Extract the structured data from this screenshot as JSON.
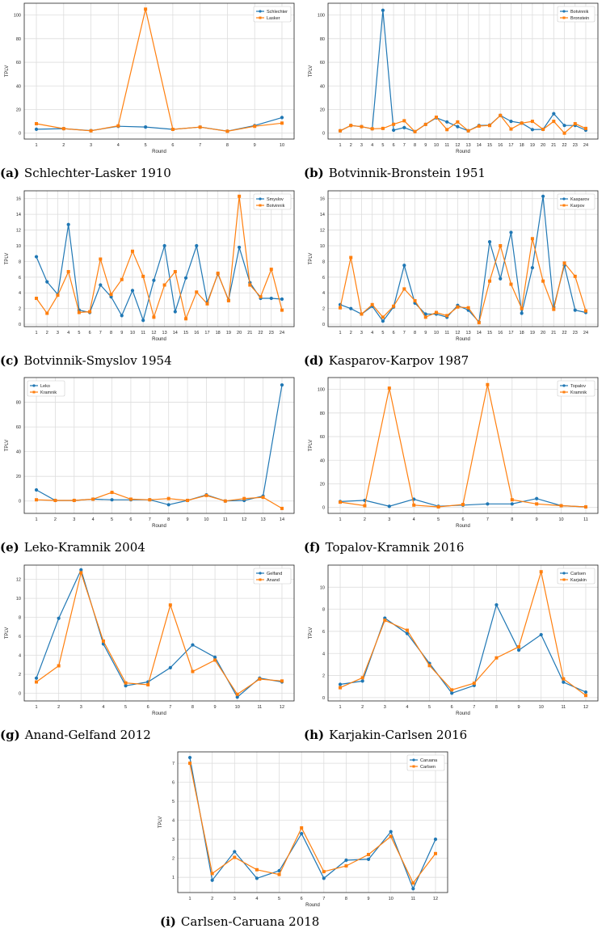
{
  "colors": {
    "blue": "#1f77b4",
    "orange": "#ff7f0e",
    "grid": "#dddddd",
    "frame": "#222222"
  },
  "chart_data": [
    {
      "id": "a",
      "type": "line",
      "caption_label": "(a)",
      "caption": "Schlechter-Lasker 1910",
      "xlabel": "Round",
      "ylabel": "TPLV",
      "legend": "top-right",
      "ylim": [
        -5,
        110
      ],
      "yticks": [
        0,
        20,
        40,
        60,
        80,
        100
      ],
      "categories": [
        "1",
        "2",
        "3",
        "4",
        "5",
        "6",
        "7",
        "8",
        "9",
        "10"
      ],
      "series": [
        {
          "name": "Schlechter",
          "color": "#1f77b4",
          "marker": "circle",
          "values": [
            3.3,
            3.8,
            2.1,
            5.8,
            5.2,
            3.2,
            5.1,
            1.7,
            6.4,
            13.2
          ]
        },
        {
          "name": "Lasker",
          "color": "#ff7f0e",
          "marker": "square",
          "values": [
            8.0,
            3.8,
            2.0,
            6.2,
            105.0,
            3.2,
            5.1,
            1.6,
            5.8,
            8.5
          ]
        }
      ]
    },
    {
      "id": "b",
      "type": "line",
      "caption_label": "(b)",
      "caption": "Botvinnik-Bronstein 1951",
      "xlabel": "Round",
      "ylabel": "TPLV",
      "legend": "top-right",
      "ylim": [
        -5,
        110
      ],
      "yticks": [
        0,
        20,
        40,
        60,
        80,
        100
      ],
      "categories": [
        "1",
        "2",
        "3",
        "4",
        "5",
        "6",
        "7",
        "8",
        "9",
        "10",
        "11",
        "12",
        "13",
        "14",
        "15",
        "16",
        "17",
        "18",
        "19",
        "20",
        "21",
        "22",
        "23",
        "24"
      ],
      "series": [
        {
          "name": "Botvinnik",
          "color": "#1f77b4",
          "marker": "circle",
          "values": [
            2.0,
            6.5,
            5.5,
            3.7,
            104.0,
            2.5,
            4.7,
            1.3,
            7.4,
            13.0,
            9.5,
            5.5,
            2.0,
            6.5,
            6.8,
            15.0,
            10.0,
            8.5,
            3.0,
            3.2,
            16.5,
            6.5,
            6.5,
            2.5
          ]
        },
        {
          "name": "Bronstein",
          "color": "#ff7f0e",
          "marker": "square",
          "values": [
            2.0,
            6.5,
            5.5,
            3.7,
            4.0,
            7.5,
            10.5,
            1.3,
            7.4,
            13.5,
            3.0,
            9.5,
            2.0,
            6.0,
            6.5,
            15.0,
            3.5,
            8.5,
            10.0,
            3.2,
            10.0,
            0.0,
            8.0,
            4.0
          ]
        }
      ]
    },
    {
      "id": "c",
      "type": "line",
      "caption_label": "(c)",
      "caption": "Botvinnik-Smyslov 1954",
      "xlabel": "Round",
      "ylabel": "TPLV",
      "legend": "top-right",
      "ylim": [
        -0.3,
        17
      ],
      "yticks": [
        0,
        2,
        4,
        6,
        8,
        10,
        12,
        14,
        16
      ],
      "categories": [
        "1",
        "2",
        "3",
        "4",
        "5",
        "6",
        "7",
        "8",
        "9",
        "10",
        "11",
        "12",
        "13",
        "14",
        "15",
        "16",
        "17",
        "18",
        "19",
        "20",
        "21",
        "22",
        "23",
        "24"
      ],
      "series": [
        {
          "name": "Smyslov",
          "color": "#1f77b4",
          "marker": "circle",
          "values": [
            8.6,
            5.4,
            3.8,
            12.7,
            1.8,
            1.5,
            5.0,
            3.5,
            1.1,
            4.3,
            0.5,
            5.6,
            10.0,
            1.6,
            5.9,
            10.0,
            2.8,
            6.4,
            3.1,
            9.8,
            5.3,
            3.3,
            3.3,
            3.2
          ]
        },
        {
          "name": "Botvinnik",
          "color": "#ff7f0e",
          "marker": "square",
          "values": [
            3.3,
            1.4,
            3.7,
            6.7,
            1.5,
            1.6,
            8.3,
            3.8,
            5.7,
            9.3,
            6.1,
            0.9,
            5.0,
            6.7,
            0.7,
            4.1,
            2.6,
            6.5,
            3.0,
            16.3,
            5.0,
            3.5,
            7.0,
            1.8
          ]
        }
      ]
    },
    {
      "id": "d",
      "type": "line",
      "caption_label": "(d)",
      "caption": "Kasparov-Karpov 1987",
      "xlabel": "Round",
      "ylabel": "TPLV",
      "legend": "top-right",
      "ylim": [
        -0.3,
        17
      ],
      "yticks": [
        0,
        2,
        4,
        6,
        8,
        10,
        12,
        14,
        16
      ],
      "categories": [
        "1",
        "2",
        "3",
        "4",
        "5",
        "6",
        "7",
        "8",
        "9",
        "10",
        "11",
        "12",
        "13",
        "14",
        "15",
        "16",
        "17",
        "18",
        "19",
        "20",
        "21",
        "22",
        "23",
        "24"
      ],
      "series": [
        {
          "name": "Kasparov",
          "color": "#1f77b4",
          "marker": "circle",
          "values": [
            2.5,
            2.0,
            1.3,
            2.3,
            0.4,
            2.2,
            7.5,
            2.7,
            1.3,
            1.3,
            0.9,
            2.4,
            1.8,
            0.3,
            10.5,
            5.8,
            11.7,
            1.4,
            7.2,
            16.3,
            2.2,
            7.5,
            1.8,
            1.5
          ]
        },
        {
          "name": "Karpov",
          "color": "#ff7f0e",
          "marker": "square",
          "values": [
            2.1,
            8.5,
            1.3,
            2.5,
            0.9,
            2.3,
            4.5,
            3.0,
            0.9,
            1.5,
            1.1,
            2.2,
            2.1,
            0.2,
            5.5,
            10.0,
            5.1,
            2.0,
            10.9,
            5.5,
            1.9,
            7.8,
            6.1,
            1.7
          ]
        }
      ]
    },
    {
      "id": "e",
      "type": "line",
      "caption_label": "(e)",
      "caption": "Leko-Kramnik 2004",
      "xlabel": "Round",
      "ylabel": "TPLV",
      "legend": "top-left",
      "ylim": [
        -10,
        100
      ],
      "yticks": [
        0,
        20,
        40,
        60,
        80
      ],
      "categories": [
        "1",
        "2",
        "3",
        "4",
        "5",
        "6",
        "7",
        "8",
        "9",
        "10",
        "11",
        "12",
        "13",
        "14"
      ],
      "series": [
        {
          "name": "Leko",
          "color": "#1f77b4",
          "marker": "circle",
          "values": [
            9.0,
            0.5,
            0.5,
            1.5,
            1.0,
            1.0,
            1.0,
            -3.0,
            0.5,
            5.0,
            0.0,
            0.5,
            4.0,
            94.0
          ]
        },
        {
          "name": "Kramnik",
          "color": "#ff7f0e",
          "marker": "square",
          "values": [
            1.0,
            0.5,
            0.5,
            1.5,
            7.0,
            1.5,
            1.0,
            2.0,
            0.5,
            4.5,
            0.0,
            2.0,
            3.0,
            -6.0
          ]
        }
      ]
    },
    {
      "id": "f",
      "type": "line",
      "caption_label": "(f)",
      "caption": "Topalov-Kramnik 2016",
      "xlabel": "Round",
      "ylabel": "TPLV",
      "legend": "top-right",
      "ylim": [
        -5,
        110
      ],
      "yticks": [
        0,
        20,
        40,
        60,
        80,
        100
      ],
      "categories": [
        "1",
        "2",
        "3",
        "4",
        "5",
        "6",
        "7",
        "8",
        "9",
        "10",
        "11"
      ],
      "series": [
        {
          "name": "Topalov",
          "color": "#1f77b4",
          "marker": "circle",
          "values": [
            5.0,
            6.0,
            1.0,
            7.0,
            1.0,
            2.0,
            3.0,
            3.0,
            7.5,
            1.5,
            0.5
          ]
        },
        {
          "name": "Kramnik",
          "color": "#ff7f0e",
          "marker": "square",
          "values": [
            4.5,
            1.5,
            101.0,
            2.0,
            0.5,
            2.5,
            104.0,
            6.5,
            3.0,
            1.5,
            0.5
          ]
        }
      ]
    },
    {
      "id": "g",
      "type": "line",
      "caption_label": "(g)",
      "caption": "Anand-Gelfand 2012",
      "xlabel": "Round",
      "ylabel": "TPLV",
      "legend": "top-right",
      "ylim": [
        -0.8,
        13.5
      ],
      "yticks": [
        0,
        2,
        4,
        6,
        8,
        10,
        12
      ],
      "categories": [
        "1",
        "2",
        "3",
        "4",
        "5",
        "6",
        "7",
        "8",
        "9",
        "10",
        "11",
        "12"
      ],
      "series": [
        {
          "name": "Gelfand",
          "color": "#1f77b4",
          "marker": "circle",
          "values": [
            1.6,
            7.9,
            13.0,
            5.2,
            0.8,
            1.2,
            2.7,
            5.1,
            3.8,
            -0.4,
            1.6,
            1.2
          ]
        },
        {
          "name": "Anand",
          "color": "#ff7f0e",
          "marker": "square",
          "values": [
            1.2,
            2.9,
            12.7,
            5.5,
            1.1,
            0.9,
            9.3,
            2.3,
            3.5,
            -0.1,
            1.5,
            1.3
          ]
        }
      ]
    },
    {
      "id": "h",
      "type": "line",
      "caption_label": "(h)",
      "caption": "Karjakin-Carlsen 2016",
      "xlabel": "Round",
      "ylabel": "TPLV",
      "legend": "top-right",
      "ylim": [
        -0.3,
        12
      ],
      "yticks": [
        0,
        2,
        4,
        6,
        8,
        10
      ],
      "categories": [
        "1",
        "2",
        "3",
        "4",
        "5",
        "6",
        "7",
        "8",
        "9",
        "10",
        "11",
        "12"
      ],
      "series": [
        {
          "name": "Carlsen",
          "color": "#1f77b4",
          "marker": "circle",
          "values": [
            1.2,
            1.5,
            7.2,
            5.8,
            3.1,
            0.4,
            1.1,
            8.4,
            4.3,
            5.7,
            1.4,
            0.5
          ]
        },
        {
          "name": "Karjakin",
          "color": "#ff7f0e",
          "marker": "square",
          "values": [
            0.9,
            1.8,
            7.0,
            6.1,
            2.9,
            0.7,
            1.3,
            3.6,
            4.6,
            11.4,
            1.7,
            0.2
          ]
        }
      ]
    },
    {
      "id": "i",
      "type": "line",
      "caption_label": "(i)",
      "caption": "Carlsen-Caruana 2018",
      "xlabel": "Round",
      "ylabel": "TPLV",
      "legend": "top-right",
      "ylim": [
        0.2,
        7.6
      ],
      "yticks": [
        1,
        2,
        3,
        4,
        5,
        6,
        7
      ],
      "categories": [
        "1",
        "2",
        "3",
        "4",
        "5",
        "6",
        "7",
        "8",
        "9",
        "10",
        "11",
        "12"
      ],
      "series": [
        {
          "name": "Caruana",
          "color": "#1f77b4",
          "marker": "circle",
          "values": [
            7.3,
            0.85,
            2.35,
            0.95,
            1.35,
            3.3,
            0.95,
            1.9,
            1.95,
            3.4,
            0.4,
            3.0
          ]
        },
        {
          "name": "Carlsen",
          "color": "#ff7f0e",
          "marker": "square",
          "values": [
            7.0,
            1.2,
            2.05,
            1.4,
            1.15,
            3.6,
            1.3,
            1.6,
            2.2,
            3.15,
            0.7,
            2.25
          ]
        }
      ]
    }
  ]
}
